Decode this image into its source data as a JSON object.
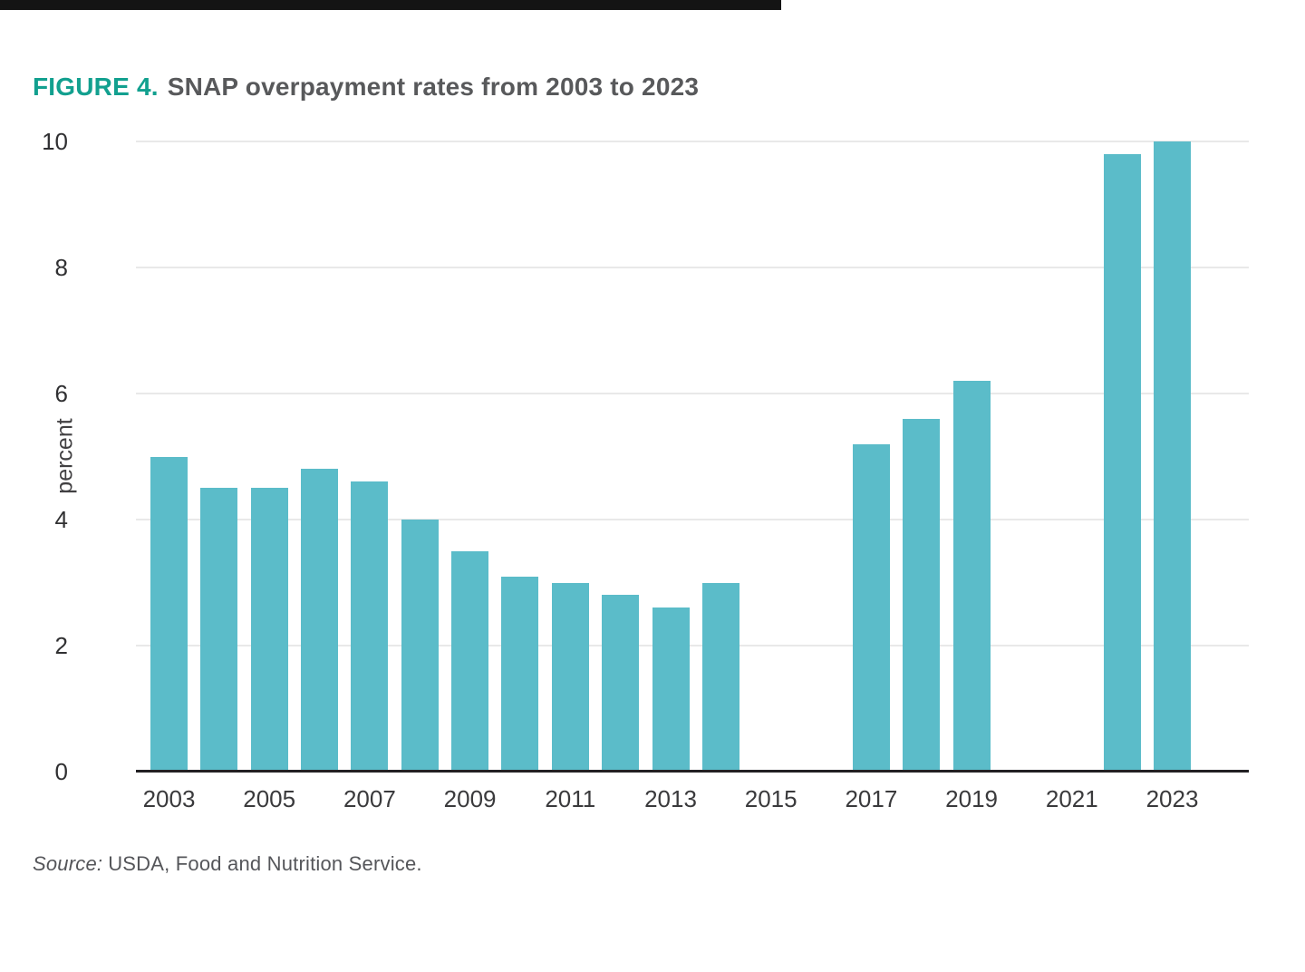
{
  "figure": {
    "label": "FIGURE 4.",
    "title": "SNAP overpayment rates from 2003 to 2023"
  },
  "source": {
    "prefix": "Source:",
    "text": "USDA, Food and Nutrition Service."
  },
  "colors": {
    "accent_teal": "#12a08f",
    "title_gray": "#58595b",
    "bar_teal": "#5bbcc9",
    "gridline_gray": "#e9e9e9",
    "axis_black": "#222023",
    "top_rule_black": "#141414"
  },
  "chart_data": {
    "type": "bar",
    "title": "SNAP overpayment rates from 2003 to 2023",
    "xlabel": "",
    "ylabel": "percent",
    "ylim": [
      0,
      10
    ],
    "yticks": [
      0,
      2,
      4,
      6,
      8,
      10
    ],
    "xticks": [
      2003,
      2005,
      2007,
      2009,
      2011,
      2013,
      2015,
      2017,
      2019,
      2021,
      2023
    ],
    "grid": true,
    "legend": "none",
    "bar_color": "#5bbcc9",
    "x": [
      2003,
      2004,
      2005,
      2006,
      2007,
      2008,
      2009,
      2010,
      2011,
      2012,
      2013,
      2014,
      2015,
      2016,
      2017,
      2018,
      2019,
      2020,
      2021,
      2022,
      2023
    ],
    "values": [
      5.0,
      4.5,
      4.5,
      4.8,
      4.6,
      4.0,
      3.5,
      3.1,
      3.0,
      2.8,
      2.6,
      3.0,
      null,
      null,
      5.2,
      5.6,
      6.2,
      null,
      null,
      9.8,
      10.0
    ]
  }
}
